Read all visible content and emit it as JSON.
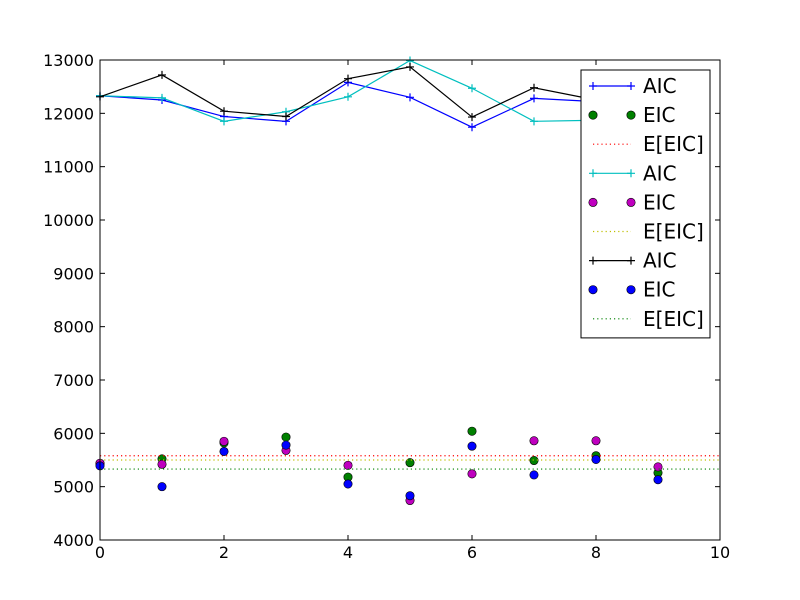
{
  "chart_data": {
    "type": "line",
    "title": "",
    "xlabel": "",
    "ylabel": "",
    "xlim": [
      0,
      10
    ],
    "ylim": [
      4000,
      13000
    ],
    "xticks": [
      "0",
      "2",
      "4",
      "6",
      "8",
      "10"
    ],
    "yticks": [
      "4000",
      "5000",
      "6000",
      "7000",
      "8000",
      "9000",
      "10000",
      "11000",
      "12000",
      "13000"
    ],
    "grid": false,
    "legend_position": "top-right",
    "x": [
      0,
      1,
      2,
      3,
      4,
      5,
      6,
      7,
      8,
      9
    ],
    "series": [
      {
        "name": "AIC",
        "style": "line-plus",
        "color": "#0000ff",
        "values": [
          12330,
          12250,
          11940,
          11850,
          12580,
          12300,
          11740,
          12280,
          12220,
          12210
        ]
      },
      {
        "name": "EIC",
        "style": "markers",
        "color": "#008000",
        "values": [
          5430,
          5520,
          5820,
          5930,
          5180,
          5450,
          6040,
          5490,
          5580,
          5260
        ]
      },
      {
        "name": "E[EIC]",
        "style": "dotted",
        "color": "#ff0000",
        "value": 5580
      },
      {
        "name": "AIC",
        "style": "line-plus",
        "color": "#00bfbf",
        "values": [
          12330,
          12290,
          11850,
          12030,
          12310,
          12990,
          12470,
          11850,
          11870,
          11870
        ]
      },
      {
        "name": "EIC",
        "style": "markers",
        "color": "#bf00bf",
        "values": [
          5440,
          5420,
          5850,
          5680,
          5400,
          4740,
          5240,
          5860,
          5860,
          5370
        ]
      },
      {
        "name": "E[EIC]",
        "style": "dotted",
        "color": "#bfbf00",
        "value": 5500
      },
      {
        "name": "AIC",
        "style": "line-plus",
        "color": "#000000",
        "values": [
          12310,
          12720,
          12040,
          11940,
          12650,
          12870,
          11930,
          12480,
          12250,
          12220
        ]
      },
      {
        "name": "EIC",
        "style": "markers",
        "color": "#0000ff",
        "values": [
          5390,
          5000,
          5660,
          5780,
          5050,
          4830,
          5760,
          5220,
          5510,
          5130
        ]
      },
      {
        "name": "E[EIC]",
        "style": "dotted",
        "color": "#008000",
        "value": 5330
      }
    ]
  }
}
